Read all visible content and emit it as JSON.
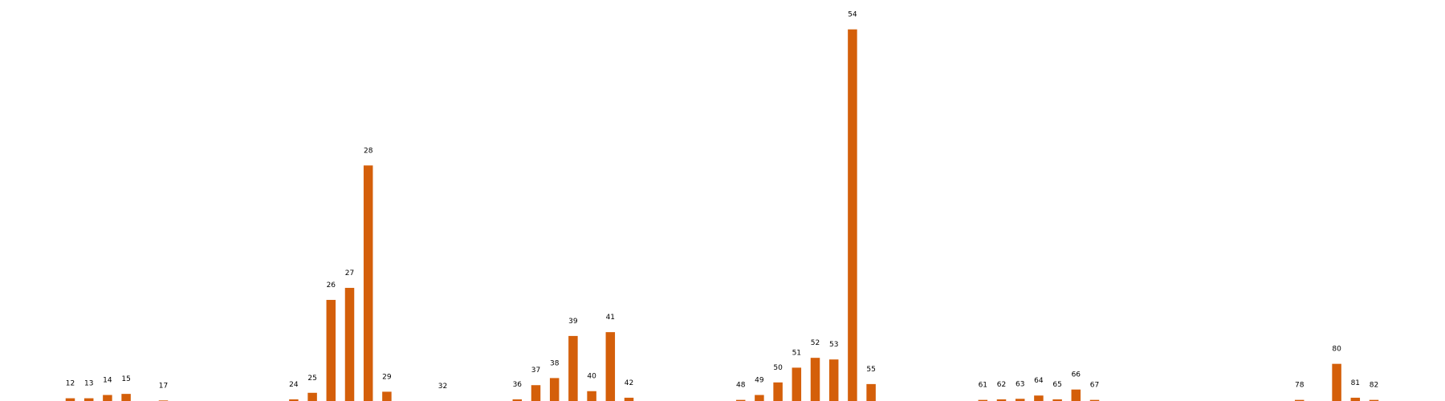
{
  "chart_data": {
    "type": "bar",
    "title": "",
    "xlabel": "",
    "ylabel": "",
    "grid": false,
    "legend": "none",
    "bar_color": "#d45f0a",
    "label_color": "#000000",
    "ylim": [
      0,
      700
    ],
    "categories": [
      "12",
      "13",
      "14",
      "15",
      "17",
      "24",
      "25",
      "26",
      "27",
      "28",
      "29",
      "32",
      "36",
      "37",
      "38",
      "39",
      "40",
      "41",
      "42",
      "48",
      "49",
      "50",
      "51",
      "52",
      "53",
      "54",
      "55",
      "61",
      "62",
      "63",
      "64",
      "65",
      "66",
      "67",
      "78",
      "80",
      "81",
      "82"
    ],
    "values": [
      5,
      5,
      11,
      13,
      1,
      3,
      15,
      185,
      207,
      431,
      17,
      0,
      3,
      29,
      42,
      119,
      18,
      126,
      6,
      2,
      11,
      34,
      61,
      79,
      76,
      680,
      31,
      2,
      3,
      4,
      10,
      3,
      21,
      2,
      2,
      68,
      6,
      2
    ]
  }
}
